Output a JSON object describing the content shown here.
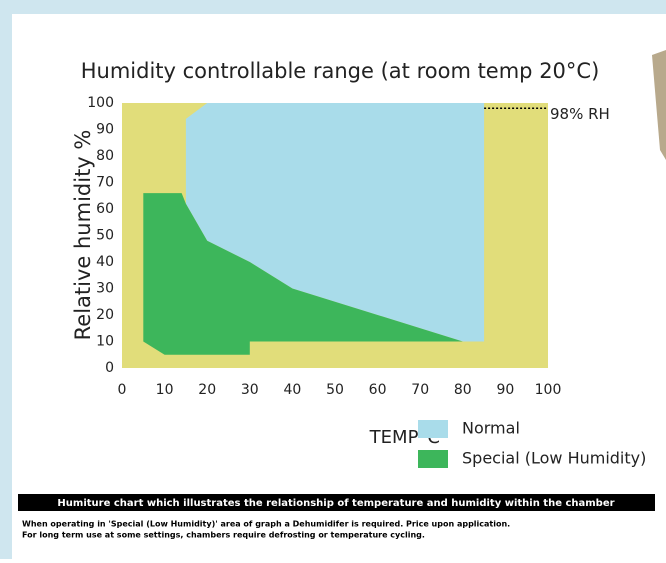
{
  "chart_data": {
    "type": "region",
    "title": "Humidity controllable range (at room temp 20°C)",
    "x_label": "TEMP°C",
    "y_label": "Relative humidity %",
    "background": "#e1dd7a",
    "series": [
      {
        "name": "Normal",
        "color": "#a9dcea",
        "x": [
          20,
          85,
          85,
          80,
          60,
          40,
          30,
          20,
          15,
          15
        ],
        "values": [
          100,
          100,
          10,
          10,
          20,
          30,
          40,
          48,
          62,
          94
        ]
      },
      {
        "name": "Special (Low Humidity)",
        "color": "#3db65b",
        "x": [
          5,
          14,
          15,
          20,
          30,
          40,
          60,
          80,
          30,
          30,
          10,
          5
        ],
        "values": [
          66,
          66,
          62,
          48,
          40,
          30,
          20,
          10,
          10,
          5,
          5,
          10
        ]
      }
    ],
    "annotation": {
      "text": "98% RH",
      "x": [
        85,
        100
      ],
      "y": 98
    },
    "xlim": [
      0,
      100
    ],
    "xticks": [
      0,
      10,
      20,
      30,
      40,
      50,
      60,
      70,
      80,
      90,
      100
    ],
    "ylim": [
      0,
      100
    ],
    "yticks": [
      0,
      10,
      20,
      30,
      40,
      50,
      60,
      70,
      80,
      90,
      100
    ]
  },
  "caption": "Humiture chart which illustrates the relationship of temperature and humidity within the chamber",
  "notes": [
    "When operating in 'Special (Low Humidity)' area of graph a Dehumidifer is required. Price upon application.",
    "For long term use at some settings, chambers require defrosting or temperature cycling."
  ]
}
